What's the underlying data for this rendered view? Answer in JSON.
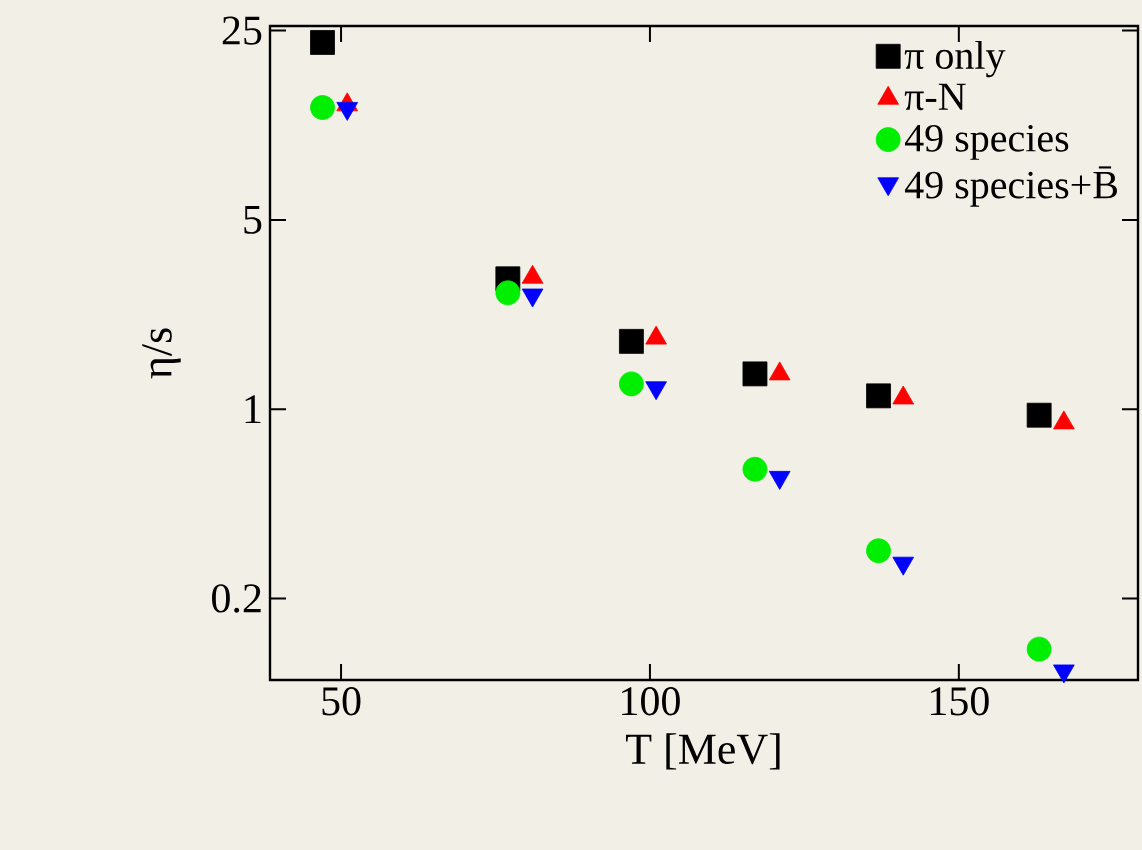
{
  "chart_data": {
    "type": "scatter",
    "xlabel": "T [MeV]",
    "ylabel": "η/s",
    "log": "y",
    "xlim": [
      38.5,
      179
    ],
    "xticks": [
      50,
      100,
      150
    ],
    "ylim": [
      0.1,
      26
    ],
    "yticks": [
      0.2,
      1,
      5,
      25
    ],
    "grid": false,
    "legend": "top right",
    "series": [
      {
        "name": "π only",
        "color": "#000000",
        "marker": "square",
        "x": [
          47,
          77,
          97,
          117,
          137,
          163
        ],
        "values": [
          22.6,
          3.03,
          1.78,
          1.35,
          1.12,
          0.95
        ]
      },
      {
        "name": "π-N",
        "color": "#ff0000",
        "marker": "triangle",
        "x": [
          51,
          81,
          101,
          121,
          141,
          167
        ],
        "values": [
          13.3,
          3.07,
          1.83,
          1.35,
          1.1,
          0.89
        ]
      },
      {
        "name": "49 species",
        "color": "#00ee00",
        "marker": "circle",
        "x": [
          47,
          77,
          97,
          117,
          137,
          163
        ],
        "values": [
          13.0,
          2.69,
          1.24,
          0.6,
          0.3,
          0.13
        ]
      },
      {
        "name": "49 species+B̄",
        "color": "#0000ff",
        "marker": "triangle down",
        "x": [
          51,
          81,
          101,
          121,
          141,
          167
        ],
        "values": [
          12.9,
          2.64,
          1.2,
          0.56,
          0.27,
          0.108
        ]
      }
    ]
  }
}
